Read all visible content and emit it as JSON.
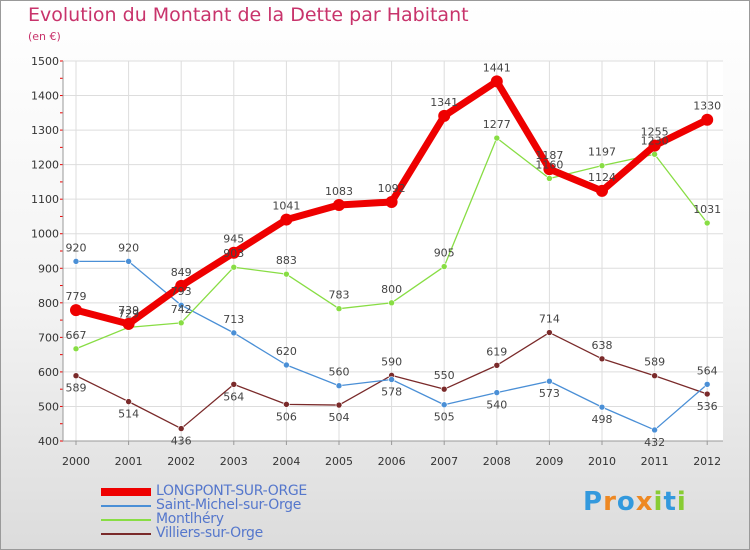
{
  "chart_data": {
    "type": "line",
    "title": "Evolution du Montant de la Dette par Habitant",
    "subtitle": "(en €)",
    "categories": [
      "2000",
      "2001",
      "2002",
      "2003",
      "2004",
      "2005",
      "2006",
      "2007",
      "2008",
      "2009",
      "2010",
      "2011",
      "2012"
    ],
    "ylim": [
      400,
      1500
    ],
    "yticks": [
      400,
      500,
      600,
      700,
      800,
      900,
      1000,
      1100,
      1200,
      1300,
      1400,
      1500
    ],
    "grid": true,
    "legend_position": "bottom-left",
    "series": [
      {
        "name": "LONGPONT-SUR-ORGE",
        "color": "#ee0000",
        "values": [
          779,
          739,
          849,
          945,
          1041,
          1083,
          1092,
          1341,
          1441,
          1187,
          1124,
          1255,
          1330
        ]
      },
      {
        "name": "Saint-Michel-sur-Orge",
        "color": "#4a8fd6",
        "values": [
          920,
          920,
          793,
          713,
          620,
          560,
          578,
          505,
          540,
          573,
          498,
          432,
          564
        ]
      },
      {
        "name": "Montlhéry",
        "color": "#88dd44",
        "values": [
          667,
          729,
          742,
          903,
          883,
          783,
          800,
          905,
          1277,
          1160,
          1197,
          1230,
          1031
        ]
      },
      {
        "name": "Villiers-sur-Orge",
        "color": "#7a2a2a",
        "values": [
          589,
          514,
          436,
          564,
          506,
          504,
          590,
          550,
          619,
          714,
          638,
          589,
          536
        ]
      }
    ]
  },
  "logo": {
    "letters": [
      "P",
      "r",
      "o",
      "x",
      "i",
      "t",
      "i"
    ],
    "colors": [
      "#3399dd",
      "#ee8822",
      "#3399dd",
      "#ee8822",
      "#88cc33",
      "#3399dd",
      "#88cc33"
    ]
  }
}
